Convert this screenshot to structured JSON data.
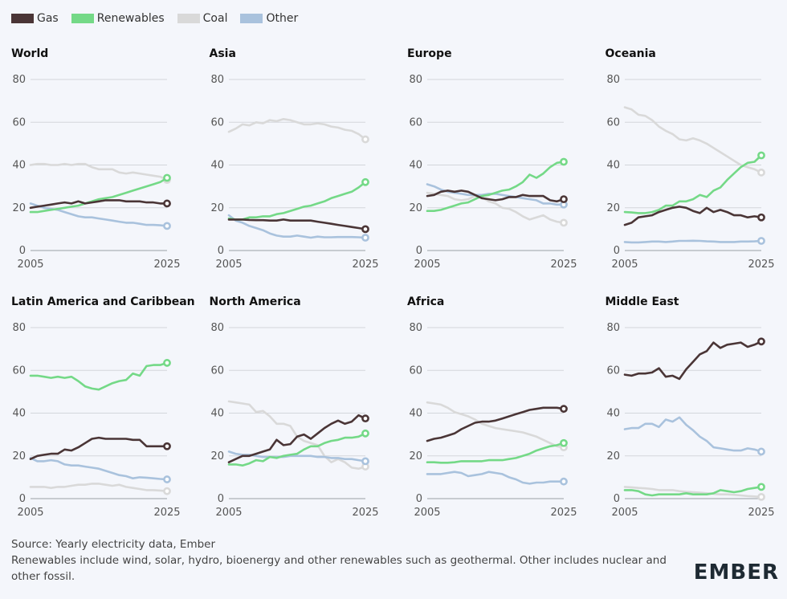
{
  "legend": [
    {
      "label": "Gas",
      "color": "#4a3536"
    },
    {
      "label": "Renewables",
      "color": "#74d987"
    },
    {
      "label": "Coal",
      "color": "#d9d9d9"
    },
    {
      "label": "Other",
      "color": "#a9c2dd"
    }
  ],
  "footer": {
    "source": "Source: Yearly electricity data, Ember",
    "note": "Renewables include wind, solar, hydro, bioenergy and other renewables such as geothermal. Other includes nuclear and other fossil."
  },
  "logo": "EMBER",
  "chart_data": [
    {
      "type": "line",
      "title": "World",
      "x": [
        2005,
        2006,
        2007,
        2008,
        2009,
        2010,
        2011,
        2012,
        2013,
        2014,
        2015,
        2016,
        2017,
        2018,
        2019,
        2020,
        2021,
        2022,
        2023,
        2024,
        2025
      ],
      "xticks": [
        "2005",
        "2025"
      ],
      "yticks": [
        0,
        20,
        40,
        60,
        80
      ],
      "ylim": [
        0,
        80
      ],
      "series": [
        {
          "name": "Coal",
          "values": [
            40,
            40.5,
            40.5,
            40,
            40,
            40.5,
            40,
            40.5,
            40.5,
            39,
            38,
            38,
            38,
            36.5,
            36,
            36.5,
            36,
            35.5,
            35,
            34.5,
            33
          ]
        },
        {
          "name": "Other",
          "values": [
            22,
            21,
            20,
            19.5,
            19,
            18,
            17,
            16,
            15.5,
            15.5,
            15,
            14.5,
            14,
            13.5,
            13,
            13,
            12.5,
            12,
            12,
            11.8,
            11.5
          ]
        },
        {
          "name": "Renewables",
          "values": [
            18,
            18,
            18.5,
            19,
            19.5,
            20,
            20.5,
            21,
            22,
            23,
            24,
            24.5,
            25,
            26,
            27,
            28,
            29,
            30,
            31,
            32,
            34
          ]
        },
        {
          "name": "Gas",
          "values": [
            20,
            20.5,
            21,
            21.5,
            22,
            22.5,
            22,
            23,
            22,
            22.5,
            23,
            23.5,
            23.5,
            23.5,
            23,
            23,
            23,
            22.5,
            22.5,
            22,
            22
          ]
        }
      ]
    },
    {
      "type": "line",
      "title": "Asia",
      "x": [
        2005,
        2006,
        2007,
        2008,
        2009,
        2010,
        2011,
        2012,
        2013,
        2014,
        2015,
        2016,
        2017,
        2018,
        2019,
        2020,
        2021,
        2022,
        2023,
        2024,
        2025
      ],
      "xticks": [
        "2005",
        "2025"
      ],
      "yticks": [
        0,
        20,
        40,
        60,
        80
      ],
      "ylim": [
        0,
        80
      ],
      "series": [
        {
          "name": "Coal",
          "values": [
            55.5,
            57,
            59,
            58.5,
            60,
            59.5,
            61,
            60.5,
            61.5,
            61,
            60,
            59,
            59,
            59.5,
            59,
            58,
            57.5,
            56.5,
            56,
            54.5,
            52
          ]
        },
        {
          "name": "Other",
          "values": [
            16.5,
            14,
            13,
            11.5,
            10.5,
            9.5,
            8,
            7,
            6.5,
            6.5,
            7,
            6.5,
            6,
            6.5,
            6.2,
            6.2,
            6.3,
            6.3,
            6.3,
            6.2,
            6
          ]
        },
        {
          "name": "Renewables",
          "values": [
            15,
            14.5,
            14.5,
            15.5,
            15.5,
            16,
            16,
            17,
            17.5,
            18.5,
            19.5,
            20.5,
            21,
            22,
            23,
            24.5,
            25.5,
            26.5,
            27.5,
            29.5,
            32
          ]
        },
        {
          "name": "Gas",
          "values": [
            14.5,
            14.5,
            14.5,
            14.3,
            14.2,
            14.2,
            14,
            14,
            14.5,
            14,
            14,
            14,
            14,
            13.5,
            13,
            12.5,
            12,
            11.5,
            11,
            10.5,
            10
          ]
        }
      ]
    },
    {
      "type": "line",
      "title": "Europe",
      "x": [
        2005,
        2006,
        2007,
        2008,
        2009,
        2010,
        2011,
        2012,
        2013,
        2014,
        2015,
        2016,
        2017,
        2018,
        2019,
        2020,
        2021,
        2022,
        2023,
        2024,
        2025
      ],
      "xticks": [
        "2005",
        "2025"
      ],
      "yticks": [
        0,
        20,
        40,
        60,
        80
      ],
      "ylim": [
        0,
        80
      ],
      "series": [
        {
          "name": "Coal",
          "values": [
            27,
            26.5,
            26,
            25.5,
            24,
            23.5,
            24,
            25.5,
            25,
            23,
            22,
            20,
            19.5,
            18,
            16,
            14.5,
            15.5,
            16.5,
            14.5,
            13.5,
            13
          ]
        },
        {
          "name": "Other",
          "values": [
            31,
            30,
            28.5,
            27.5,
            27,
            26.5,
            26,
            26,
            26,
            26.5,
            26.5,
            26,
            25.5,
            25,
            24.5,
            24,
            23.5,
            22,
            22,
            21.5,
            21.5
          ]
        },
        {
          "name": "Renewables",
          "values": [
            18.5,
            18.5,
            19,
            20,
            21,
            22,
            22.5,
            24,
            25.5,
            26,
            27,
            28,
            28.5,
            30,
            32,
            35.5,
            34,
            36,
            39,
            41,
            41.5
          ]
        },
        {
          "name": "Gas",
          "values": [
            25.5,
            26,
            27.5,
            28,
            27.5,
            28,
            27.5,
            26,
            24.5,
            24,
            23.5,
            24,
            25,
            25,
            26,
            25.5,
            25.5,
            25.5,
            23.5,
            23,
            24
          ]
        }
      ]
    },
    {
      "type": "line",
      "title": "Oceania",
      "x": [
        2005,
        2006,
        2007,
        2008,
        2009,
        2010,
        2011,
        2012,
        2013,
        2014,
        2015,
        2016,
        2017,
        2018,
        2019,
        2020,
        2021,
        2022,
        2023,
        2024,
        2025
      ],
      "xticks": [
        "2005",
        "2025"
      ],
      "yticks": [
        0,
        20,
        40,
        60,
        80
      ],
      "ylim": [
        0,
        80
      ],
      "series": [
        {
          "name": "Coal",
          "values": [
            67,
            66,
            63.5,
            63,
            61,
            58,
            56,
            54.5,
            52,
            51.5,
            52.5,
            51.5,
            50,
            48,
            46,
            44,
            42,
            40,
            39,
            38,
            36.5
          ]
        },
        {
          "name": "Other",
          "values": [
            4,
            3.8,
            3.8,
            4,
            4.2,
            4.2,
            4,
            4.2,
            4.5,
            4.5,
            4.6,
            4.5,
            4.3,
            4.2,
            4,
            4,
            4,
            4.2,
            4.2,
            4.3,
            4.5
          ]
        },
        {
          "name": "Renewables",
          "values": [
            18,
            17.8,
            17.5,
            17.5,
            18,
            19,
            21,
            21,
            23,
            23,
            24,
            26,
            25,
            28,
            29.5,
            33,
            36,
            39,
            41,
            41.5,
            44.5
          ]
        },
        {
          "name": "Gas",
          "values": [
            12,
            13,
            15.5,
            16,
            16.5,
            18,
            19,
            20,
            20.5,
            20,
            18.5,
            17.5,
            20,
            18,
            19,
            18,
            16.5,
            16.5,
            15.5,
            16,
            15.5
          ]
        }
      ]
    },
    {
      "type": "line",
      "title": "Latin America and Caribbean",
      "x": [
        2005,
        2006,
        2007,
        2008,
        2009,
        2010,
        2011,
        2012,
        2013,
        2014,
        2015,
        2016,
        2017,
        2018,
        2019,
        2020,
        2021,
        2022,
        2023,
        2024,
        2025
      ],
      "xticks": [
        "2005",
        "2025"
      ],
      "yticks": [
        0,
        20,
        40,
        60,
        80
      ],
      "ylim": [
        0,
        80
      ],
      "series": [
        {
          "name": "Coal",
          "values": [
            5.5,
            5.5,
            5.5,
            5,
            5.5,
            5.5,
            6,
            6.5,
            6.5,
            7,
            7,
            6.5,
            6,
            6.5,
            5.5,
            5,
            4.5,
            4,
            4,
            3.8,
            3.5
          ]
        },
        {
          "name": "Other",
          "values": [
            19,
            17.5,
            17.5,
            18,
            17.5,
            16,
            15.5,
            15.5,
            15,
            14.5,
            14,
            13,
            12,
            11,
            10.5,
            9.5,
            10,
            9.8,
            9.5,
            9.2,
            9
          ]
        },
        {
          "name": "Renewables",
          "values": [
            57.5,
            57.5,
            57,
            56.5,
            57,
            56.5,
            57,
            55,
            52.5,
            51.5,
            51,
            52.5,
            54,
            55,
            55.5,
            58.5,
            57.5,
            62,
            62.5,
            62.5,
            63.5
          ]
        },
        {
          "name": "Gas",
          "values": [
            18.5,
            20,
            20.5,
            21,
            21,
            23,
            22.5,
            24,
            26,
            28,
            28.5,
            28,
            28,
            28,
            28,
            27.5,
            27.5,
            24.5,
            24.5,
            24.5,
            24.5
          ]
        }
      ]
    },
    {
      "type": "line",
      "title": "North America",
      "x": [
        2005,
        2006,
        2007,
        2008,
        2009,
        2010,
        2011,
        2012,
        2013,
        2014,
        2015,
        2016,
        2017,
        2018,
        2019,
        2020,
        2021,
        2022,
        2023,
        2024,
        2025
      ],
      "xticks": [
        "2005",
        "2025"
      ],
      "yticks": [
        0,
        20,
        40,
        60,
        80
      ],
      "ylim": [
        0,
        80
      ],
      "series": [
        {
          "name": "Coal",
          "values": [
            45.5,
            45,
            44.5,
            44,
            40.5,
            41,
            38.5,
            35,
            35,
            34,
            29,
            27,
            26,
            25,
            20,
            17,
            18.5,
            17,
            14.5,
            14,
            15
          ]
        },
        {
          "name": "Other",
          "values": [
            22,
            21,
            20.5,
            20.5,
            20,
            19.5,
            19.5,
            19.5,
            19.5,
            20,
            20,
            20,
            20,
            19.5,
            19.5,
            19,
            19,
            18.5,
            18.5,
            18,
            17.5
          ]
        },
        {
          "name": "Renewables",
          "values": [
            16,
            16,
            15.5,
            16.5,
            18,
            17.5,
            19.5,
            19,
            20,
            20.5,
            21,
            23,
            24.5,
            24.5,
            26,
            27,
            27.5,
            28.5,
            28.5,
            29,
            30.5
          ]
        },
        {
          "name": "Gas",
          "values": [
            17,
            18.5,
            20,
            20,
            21,
            22,
            23,
            27.5,
            25,
            25.5,
            29,
            30,
            28,
            30.5,
            33,
            35,
            36.5,
            35,
            36,
            39,
            37.5
          ]
        }
      ]
    },
    {
      "type": "line",
      "title": "Africa",
      "x": [
        2005,
        2006,
        2007,
        2008,
        2009,
        2010,
        2011,
        2012,
        2013,
        2014,
        2015,
        2016,
        2017,
        2018,
        2019,
        2020,
        2021,
        2022,
        2023,
        2024,
        2025
      ],
      "xticks": [
        "2005",
        "2025"
      ],
      "yticks": [
        0,
        20,
        40,
        60,
        80
      ],
      "ylim": [
        0,
        80
      ],
      "series": [
        {
          "name": "Coal",
          "values": [
            45,
            44.5,
            44,
            42.5,
            40.5,
            39.5,
            38.5,
            37,
            35,
            34,
            33,
            32.5,
            32,
            31.5,
            31,
            30,
            29,
            27.5,
            26,
            24.5,
            24
          ]
        },
        {
          "name": "Other",
          "values": [
            11.5,
            11.5,
            11.5,
            12,
            12.5,
            12,
            10.5,
            11,
            11.5,
            12.5,
            12,
            11.5,
            10,
            9,
            7.5,
            7,
            7.5,
            7.5,
            8,
            8,
            8
          ]
        },
        {
          "name": "Renewables",
          "values": [
            17,
            17,
            16.8,
            16.8,
            17,
            17.5,
            17.5,
            17.5,
            17.5,
            18,
            18,
            18,
            18.5,
            19,
            20,
            21,
            22.5,
            23.5,
            24.5,
            25,
            26
          ]
        },
        {
          "name": "Gas",
          "values": [
            27,
            28,
            28.5,
            29.5,
            30.5,
            32.5,
            34,
            35.5,
            36,
            36,
            36.5,
            37.5,
            38.5,
            39.5,
            40.5,
            41.5,
            42,
            42.5,
            42.5,
            42.5,
            42
          ]
        }
      ]
    },
    {
      "type": "line",
      "title": "Middle East",
      "x": [
        2005,
        2006,
        2007,
        2008,
        2009,
        2010,
        2011,
        2012,
        2013,
        2014,
        2015,
        2016,
        2017,
        2018,
        2019,
        2020,
        2021,
        2022,
        2023,
        2024,
        2025
      ],
      "xticks": [
        "2005",
        "2025"
      ],
      "yticks": [
        0,
        20,
        40,
        60,
        80
      ],
      "ylim": [
        0,
        80
      ],
      "series": [
        {
          "name": "Coal",
          "values": [
            5.5,
            5.3,
            5,
            4.8,
            4.5,
            4,
            4,
            4,
            3.5,
            3.2,
            3,
            2.8,
            2.5,
            2.2,
            2,
            2,
            1.8,
            1.5,
            1.2,
            1,
            0.8
          ]
        },
        {
          "name": "Other",
          "values": [
            32.5,
            33,
            33,
            35,
            35,
            33.5,
            37,
            36,
            38,
            34.5,
            32,
            29,
            27,
            24,
            23.5,
            23,
            22.5,
            22.5,
            23.5,
            23,
            22
          ]
        },
        {
          "name": "Renewables",
          "values": [
            4,
            4,
            3.5,
            2,
            1.5,
            2,
            2,
            2,
            2,
            2.5,
            2,
            2,
            2,
            2.5,
            4,
            3.5,
            3,
            3.5,
            4.5,
            5,
            5.5
          ]
        },
        {
          "name": "Gas",
          "values": [
            58,
            57.5,
            58.5,
            58.5,
            59,
            61,
            57,
            57.5,
            56,
            60.5,
            64,
            67.5,
            69,
            73,
            70.5,
            72,
            72.5,
            73,
            71,
            72,
            73.5
          ]
        }
      ]
    }
  ]
}
